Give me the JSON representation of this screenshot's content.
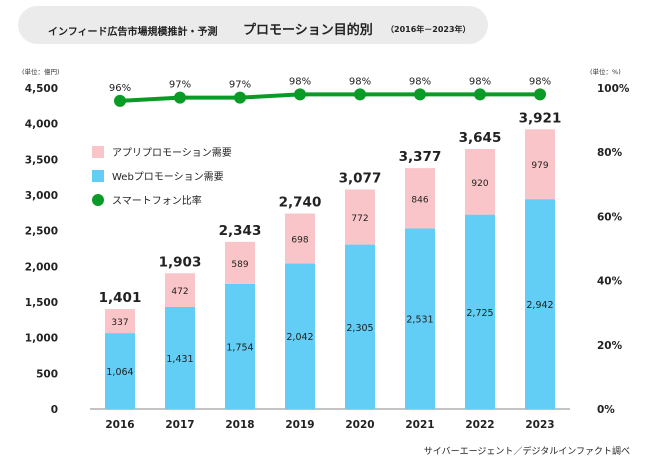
{
  "header": {
    "title": "インフィード広告市場規模推計・予測",
    "subtitle": "プロモーション目的別",
    "range": "（2016年－2023年）"
  },
  "source": "サイバーエージェント／デジタルインファクト調べ",
  "colors": {
    "web": "#62cdf5",
    "app": "#f9c5c8",
    "line": "#0a9a26",
    "title_bg": "#ebebeb"
  },
  "chart_data": {
    "type": "bar",
    "stacked": true,
    "categories": [
      "2016",
      "2017",
      "2018",
      "2019",
      "2020",
      "2021",
      "2022",
      "2023"
    ],
    "series": [
      {
        "name": "Webプロモーション需要",
        "values": [
          1064,
          1431,
          1754,
          2042,
          2305,
          2531,
          2725,
          2942
        ]
      },
      {
        "name": "アプリプロモーション需要",
        "values": [
          337,
          472,
          589,
          698,
          772,
          846,
          920,
          979
        ]
      }
    ],
    "totals": [
      1401,
      1903,
      2343,
      2740,
      3077,
      3377,
      3645,
      3921
    ],
    "line_series": {
      "name": "スマートフォン比率",
      "values": [
        96,
        97,
        97,
        98,
        98,
        98,
        98,
        98
      ],
      "labels": [
        "96%",
        "97%",
        "97%",
        "98%",
        "98%",
        "98%",
        "98%",
        "98%"
      ]
    },
    "left_axis": {
      "unit_label": "(単位：億円)",
      "ylim": [
        0,
        4500
      ],
      "ticks": [
        0,
        500,
        1000,
        1500,
        2000,
        2500,
        3000,
        3500,
        4000,
        4500
      ],
      "tick_labels": [
        "0",
        "500",
        "1,000",
        "1,500",
        "2,000",
        "2,500",
        "3,000",
        "3,500",
        "4,000",
        "4,500"
      ]
    },
    "right_axis": {
      "unit_label": "(単位：%)",
      "ylim": [
        0,
        100
      ],
      "ticks": [
        0,
        20,
        40,
        60,
        80,
        100
      ],
      "tick_labels": [
        "0%",
        "20%",
        "40%",
        "60%",
        "80%",
        "100%"
      ]
    },
    "legend": {
      "position": "upper-left",
      "items": [
        "アプリプロモーション需要",
        "Webプロモーション需要",
        "スマートフォン比率"
      ]
    }
  }
}
